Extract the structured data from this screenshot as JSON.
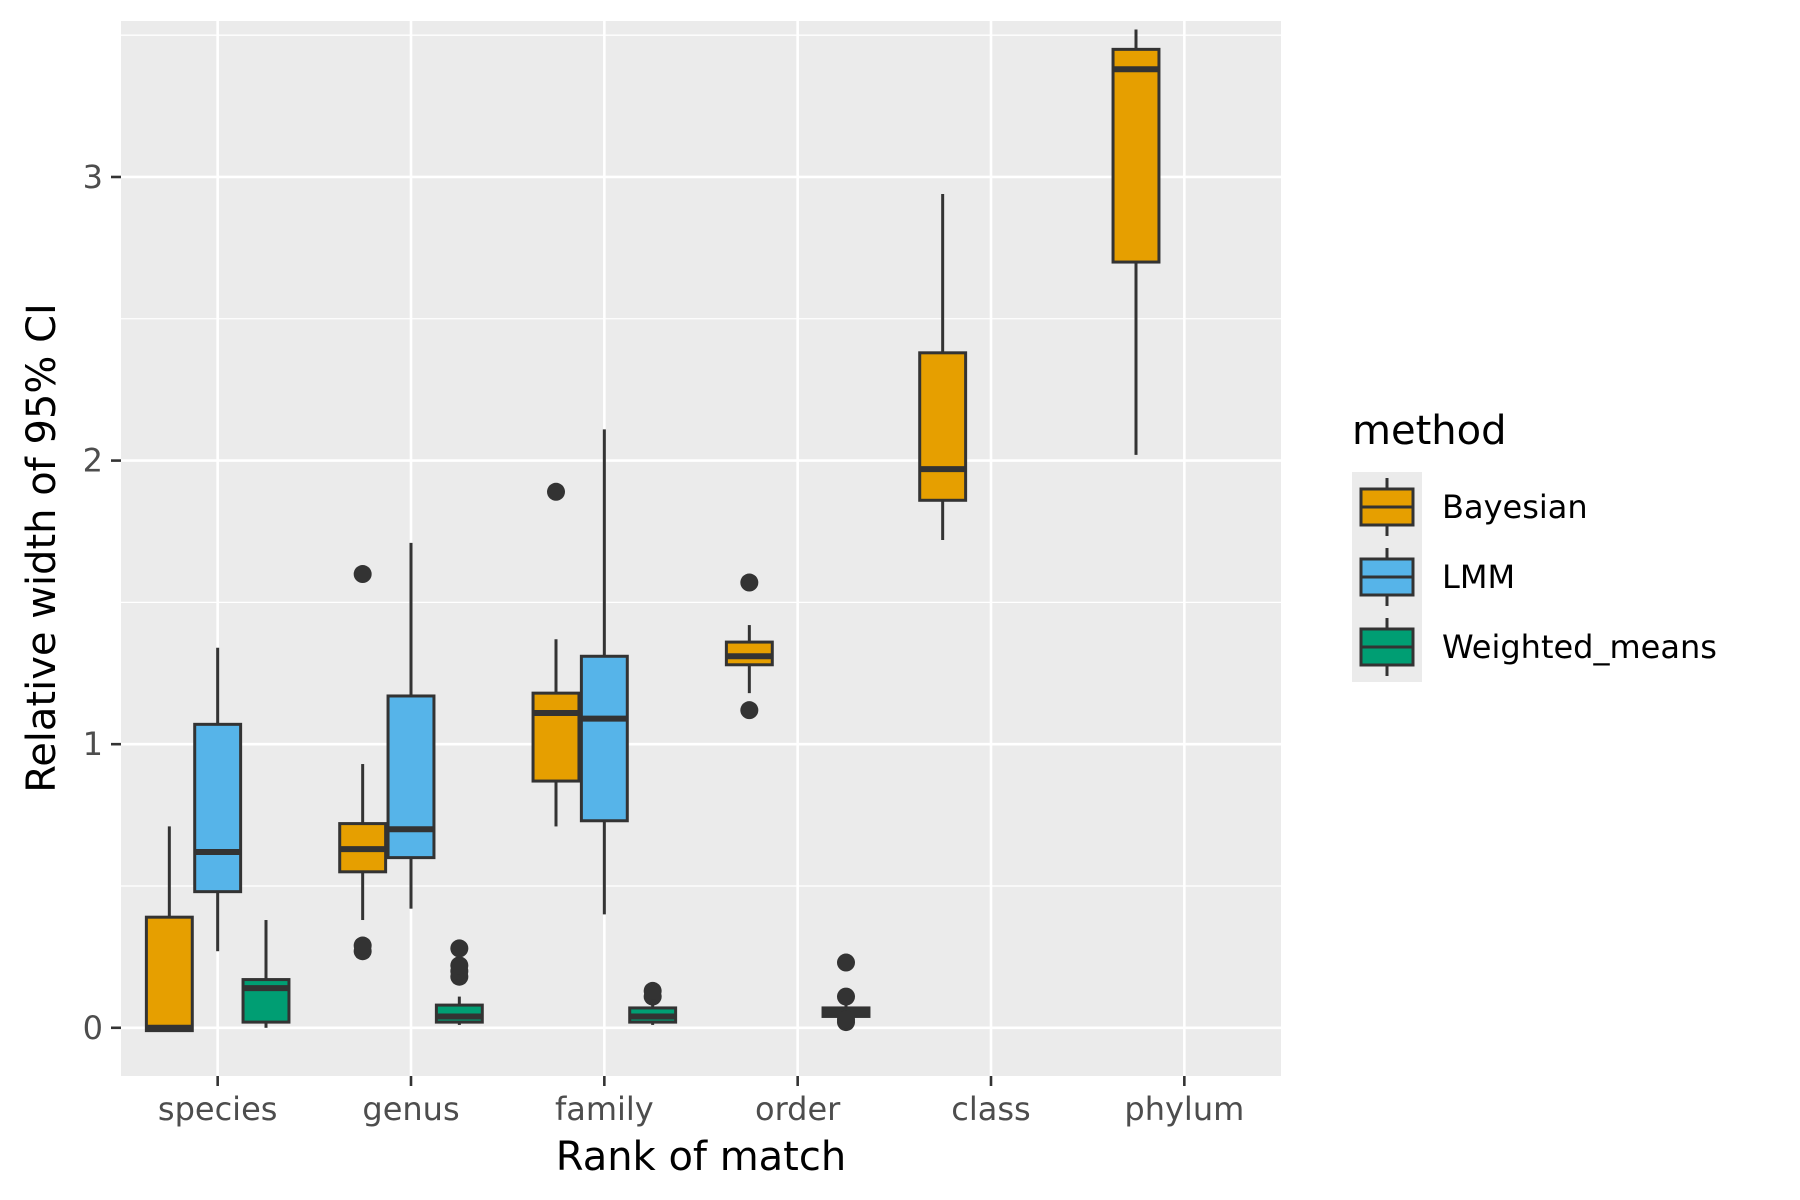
{
  "chart_data": {
    "type": "boxplot",
    "xlabel": "Rank of match",
    "ylabel": "Relative width of 95% CI",
    "categories": [
      "species",
      "genus",
      "family",
      "order",
      "class",
      "phylum"
    ],
    "ylim": [
      -0.17,
      3.55
    ],
    "y_ticks": [
      0,
      1,
      2,
      3
    ],
    "grid": true,
    "legend": {
      "title": "method",
      "position": "right"
    },
    "series": [
      {
        "name": "Bayesian",
        "color": "#E69F00",
        "boxes": [
          {
            "category": "species",
            "whisker_low": -0.01,
            "q1": -0.01,
            "median": 0.0,
            "q3": 0.39,
            "whisker_high": 0.71,
            "outliers": []
          },
          {
            "category": "genus",
            "whisker_low": 0.38,
            "q1": 0.55,
            "median": 0.63,
            "q3": 0.72,
            "whisker_high": 0.93,
            "outliers": [
              0.27,
              0.29,
              1.6
            ]
          },
          {
            "category": "family",
            "whisker_low": 0.71,
            "q1": 0.87,
            "median": 1.11,
            "q3": 1.18,
            "whisker_high": 1.37,
            "outliers": [
              1.89
            ]
          },
          {
            "category": "order",
            "whisker_low": 1.18,
            "q1": 1.28,
            "median": 1.31,
            "q3": 1.36,
            "whisker_high": 1.42,
            "outliers": [
              1.12,
              1.57
            ]
          },
          {
            "category": "class",
            "whisker_low": 1.72,
            "q1": 1.86,
            "median": 1.97,
            "q3": 2.38,
            "whisker_high": 2.94,
            "outliers": []
          },
          {
            "category": "phylum",
            "whisker_low": 2.02,
            "q1": 2.7,
            "median": 3.38,
            "q3": 3.45,
            "whisker_high": 3.52,
            "outliers": []
          }
        ]
      },
      {
        "name": "LMM",
        "color": "#56B4E9",
        "boxes": [
          {
            "category": "species",
            "whisker_low": 0.27,
            "q1": 0.48,
            "median": 0.62,
            "q3": 1.07,
            "whisker_high": 1.34,
            "outliers": []
          },
          {
            "category": "genus",
            "whisker_low": 0.42,
            "q1": 0.6,
            "median": 0.7,
            "q3": 1.17,
            "whisker_high": 1.71,
            "outliers": []
          },
          {
            "category": "family",
            "whisker_low": 0.4,
            "q1": 0.73,
            "median": 1.09,
            "q3": 1.31,
            "whisker_high": 2.11,
            "outliers": []
          }
        ]
      },
      {
        "name": "Weighted_means",
        "color": "#009E73",
        "boxes": [
          {
            "category": "species",
            "whisker_low": 0.0,
            "q1": 0.02,
            "median": 0.14,
            "q3": 0.17,
            "whisker_high": 0.38,
            "outliers": []
          },
          {
            "category": "genus",
            "whisker_low": 0.01,
            "q1": 0.02,
            "median": 0.04,
            "q3": 0.08,
            "whisker_high": 0.11,
            "outliers": [
              0.18,
              0.2,
              0.22,
              0.28
            ]
          },
          {
            "category": "family",
            "whisker_low": 0.01,
            "q1": 0.02,
            "median": 0.04,
            "q3": 0.07,
            "whisker_high": 0.09,
            "outliers": [
              0.11,
              0.13
            ]
          },
          {
            "category": "order",
            "whisker_low": 0.04,
            "q1": 0.04,
            "median": 0.055,
            "q3": 0.07,
            "whisker_high": 0.08,
            "outliers": [
              0.02,
              0.03,
              0.11,
              0.23
            ]
          }
        ]
      }
    ]
  }
}
